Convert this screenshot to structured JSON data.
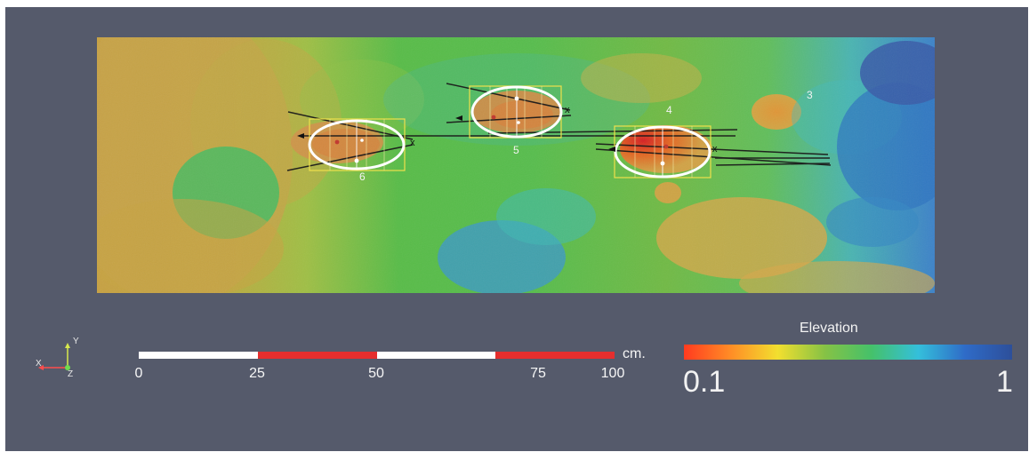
{
  "map": {
    "track_labels": {
      "t3": "3",
      "t4": "4",
      "t5": "5",
      "t6": "6"
    },
    "x_mark": "x"
  },
  "axes": {
    "x": "X",
    "y": "Y",
    "z": "Z",
    "colors": {
      "x": "#ff4d4d",
      "y": "#d8e94d",
      "z": "#6fdc4f"
    }
  },
  "scale": {
    "ticks": [
      "0",
      "25",
      "50",
      "75",
      "100"
    ],
    "unit": "cm.",
    "segment_colors": [
      "#ffffff",
      "#e52e2e",
      "#ffffff",
      "#e52e2e"
    ]
  },
  "legend": {
    "title": "Elevation",
    "min": "0.1",
    "max": "1",
    "stops": [
      "#ff3b1f",
      "#ff8d26",
      "#f2df2f",
      "#86c245",
      "#45c16a",
      "#34bfdb",
      "#2f6bc7",
      "#2d4f9a"
    ]
  }
}
